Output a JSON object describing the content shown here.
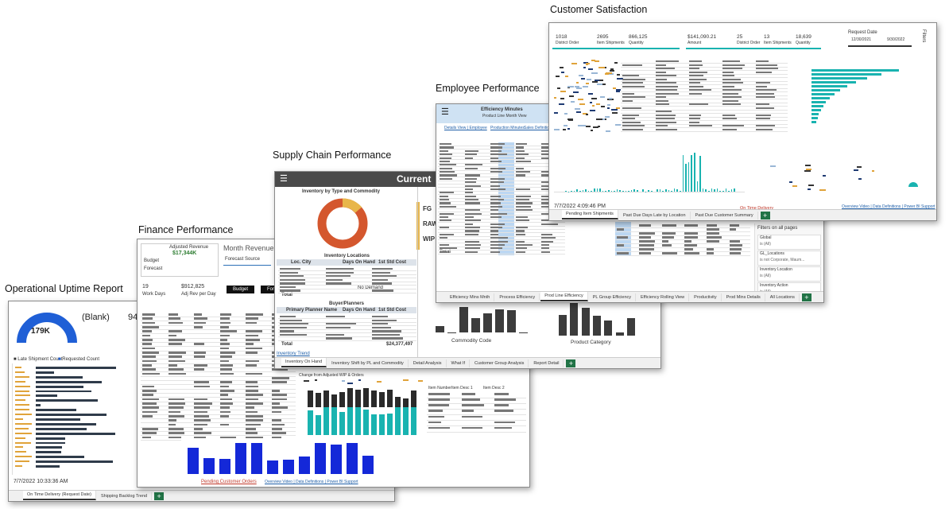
{
  "operational": {
    "heading": "Operational Uptime Report",
    "gauge_value": "179K",
    "kpi": "(Blank)",
    "kpi2": "94",
    "legend": [
      "Late Shipment Count",
      "Requested Count"
    ],
    "timestamp": "7/7/2022 10:33:36 AM",
    "tabs": [
      "On Time Delivery (Request Date)",
      "Shipping Backlog Trend"
    ]
  },
  "finance": {
    "heading": "Finance Performance",
    "card_title": "Adjusted Revenue",
    "card_value": "$17,344K",
    "card_rows": [
      "Budget",
      "Forecast"
    ],
    "chart_title": "Month Revenue Projections",
    "source_label": "Forecast Source",
    "buttons": [
      "Budget",
      "Forecast"
    ],
    "work_days": "19",
    "work_days_label": "Work Days",
    "adj_rev": "$912,825",
    "adj_rev_label": "Adj Rev per Day",
    "wip_title": "Change from Adjusted WIP & Orders",
    "wip_columns": [
      "Item Number",
      "Item Desc 1",
      "Item Desc 2"
    ],
    "footer": "Pending Customer Orders",
    "links": "Overview Video | Data Definitions | Power BI Support"
  },
  "supply_chain": {
    "heading": "Supply Chain Performance",
    "banner": "Current",
    "donut_title": "Inventory by Type and Commodity",
    "locations_title": "Inventory Locations",
    "locations_columns": [
      "Loc. City",
      "Days On Hand",
      "1st Std Cost"
    ],
    "no_demand": "No Demand",
    "total": "Total",
    "planners_title": "Buyer/Planners",
    "planners_columns": [
      "Primary Planner Name",
      "Days On Hand",
      "1st Std Cost"
    ],
    "planners_total": "Total",
    "planners_total_value": "$24,377,497",
    "trend_link": "Inventory Trend",
    "types": [
      "FG",
      "RAW",
      "WIP"
    ],
    "axis_left": "Commodity Code",
    "axis_right": "Product Category",
    "tabs": [
      "Inventory On Hand",
      "Inventory Shift by PL and Commodity",
      "Detail Analysis",
      "What If",
      "Customer Group Analysis",
      "Report Detail"
    ]
  },
  "employee": {
    "heading": "Employee Performance",
    "title": "Efficiency Minutes",
    "subtitle": "Product Line Month View",
    "links": [
      "Details View | Employee",
      "Production Minutes",
      "Sales Definition"
    ],
    "total": "Total",
    "filters_title": "Filters on all pages",
    "filters": [
      {
        "name": "Global",
        "value": "is (All)"
      },
      {
        "name": "GL_Locations",
        "value": "is not Corporate, Maum..."
      },
      {
        "name": "Inventory Location",
        "value": "is (All)"
      },
      {
        "name": "Inventory Action",
        "value": "is (All)"
      }
    ],
    "tabs": [
      "Efficiency Mins Mnth",
      "Process Efficiency",
      "Prod Line Efficiency",
      "PL Group Efficiency",
      "Efficiency Rolling View",
      "Productivity",
      "Prod Mins Details",
      "All Locations"
    ]
  },
  "customer": {
    "heading": "Customer Satisfaction",
    "kpis": [
      {
        "value": "1018",
        "label": "District Order"
      },
      {
        "value": "2695",
        "label": "Item Shipments"
      },
      {
        "value": "866,125",
        "label": "Quantity"
      },
      {
        "value": "$141,090.21",
        "label": "Amount"
      },
      {
        "value": "25",
        "label": "District Order"
      },
      {
        "value": "13",
        "label": "Item Shipments"
      },
      {
        "value": "18,639",
        "label": "Quantity"
      }
    ],
    "date_label": "Request Date",
    "date_from": "12/30/2021",
    "date_to": "9/30/2022",
    "filters": "Filters",
    "timestamp": "7/7/2022 4:09:46 PM",
    "delivery_link": "On Time Delivery",
    "links": "Overview Video | Data Definitions | Power BI Support",
    "tabs": [
      "Pending Item Shipments",
      "Past Due Days Late by Location",
      "Past Due Customer Summary"
    ]
  }
}
